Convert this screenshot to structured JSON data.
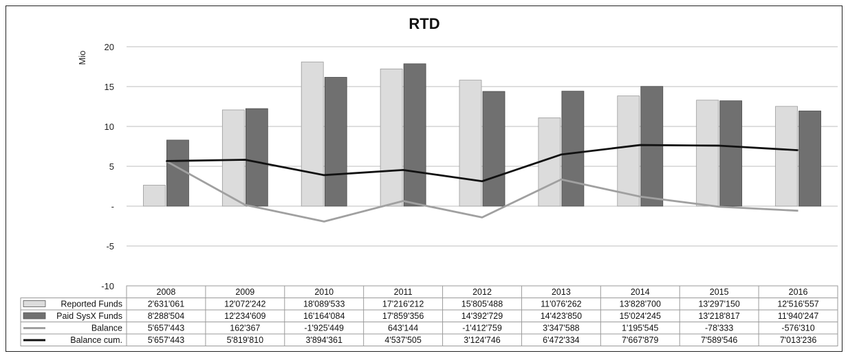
{
  "chart_data": {
    "type": "bar",
    "title": "RTD",
    "ylabel": "Mio",
    "ylim": [
      -10,
      20
    ],
    "yticks": [
      {
        "v": 20,
        "label": "20"
      },
      {
        "v": 15,
        "label": "15"
      },
      {
        "v": 10,
        "label": "10"
      },
      {
        "v": 5,
        "label": "5"
      },
      {
        "v": 0,
        "label": "-"
      },
      {
        "v": -5,
        "label": "-5"
      },
      {
        "v": -10,
        "label": "-10"
      }
    ],
    "grid": true,
    "legend": "data-table",
    "categories": [
      "2008",
      "2009",
      "2010",
      "2011",
      "2012",
      "2013",
      "2014",
      "2015",
      "2016"
    ],
    "series": [
      {
        "name": "Reported Funds",
        "kind": "bar",
        "color": "#dcdcdc",
        "values": [
          2.631061,
          12.072242,
          18.089533,
          17.216212,
          15.805488,
          11.076262,
          13.8287,
          13.29715,
          12.516557
        ],
        "labels": [
          "2'631'061",
          "12'072'242",
          "18'089'533",
          "17'216'212",
          "15'805'488",
          "11'076'262",
          "13'828'700",
          "13'297'150",
          "12'516'557"
        ]
      },
      {
        "name": "Paid SysX Funds",
        "kind": "bar",
        "color": "#707070",
        "values": [
          8.288504,
          12.234609,
          16.164084,
          17.859356,
          14.392729,
          14.42385,
          15.024245,
          13.218817,
          11.940247
        ],
        "labels": [
          "8'288'504",
          "12'234'609",
          "16'164'084",
          "17'859'356",
          "14'392'729",
          "14'423'850",
          "15'024'245",
          "13'218'817",
          "11'940'247"
        ]
      },
      {
        "name": "Balance",
        "kind": "line",
        "color": "#a0a0a0",
        "values": [
          5.657443,
          0.162367,
          -1.925449,
          0.643144,
          -1.412759,
          3.347588,
          1.195545,
          -0.078333,
          -0.57631
        ],
        "labels": [
          "5'657'443",
          "162'367",
          "-1'925'449",
          "643'144",
          "-1'412'759",
          "3'347'588",
          "1'195'545",
          "-78'333",
          "-576'310"
        ]
      },
      {
        "name": "Balance cum.",
        "kind": "line",
        "color": "#111111",
        "values": [
          5.657443,
          5.81981,
          3.894361,
          4.537505,
          3.124746,
          6.472334,
          7.667879,
          7.589546,
          7.013236
        ],
        "labels": [
          "5'657'443",
          "5'819'810",
          "3'894'361",
          "4'537'505",
          "3'124'746",
          "6'472'334",
          "7'667'879",
          "7'589'546",
          "7'013'236"
        ]
      }
    ]
  }
}
